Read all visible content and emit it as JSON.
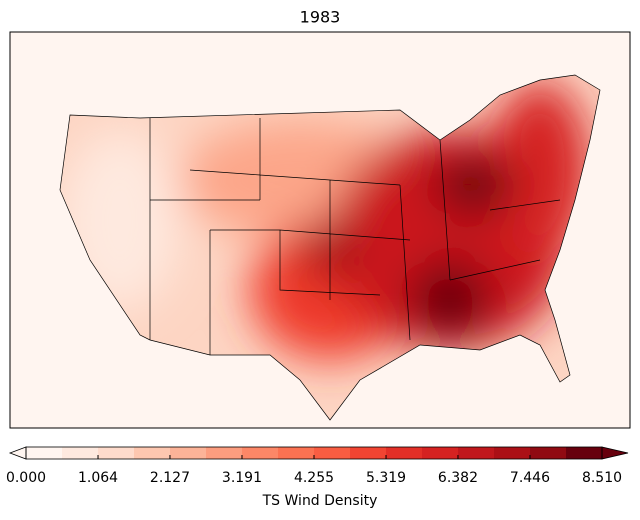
{
  "title": "1983",
  "colorbar": {
    "label": "TS Wind Density",
    "lim": [
      0,
      8.51
    ],
    "ticks": [
      {
        "value": 0,
        "label": "0.000"
      },
      {
        "value": 1.064,
        "label": "1.064"
      },
      {
        "value": 2.127,
        "label": "2.127"
      },
      {
        "value": 3.191,
        "label": "3.191"
      },
      {
        "value": 4.255,
        "label": "4.255"
      },
      {
        "value": 5.319,
        "label": "5.319"
      },
      {
        "value": 6.382,
        "label": "6.382"
      },
      {
        "value": 7.446,
        "label": "7.446"
      },
      {
        "value": 8.51,
        "label": "8.510"
      }
    ],
    "colors": [
      "#fff5f0",
      "#fee9df",
      "#fedbcc",
      "#fdc7b0",
      "#fcb398",
      "#fc9d7f",
      "#fc8767",
      "#fb7252",
      "#f85d42",
      "#f14432",
      "#e32f27",
      "#d52221",
      "#c0171c",
      "#ab1016",
      "#900a12",
      "#67000d"
    ]
  }
}
